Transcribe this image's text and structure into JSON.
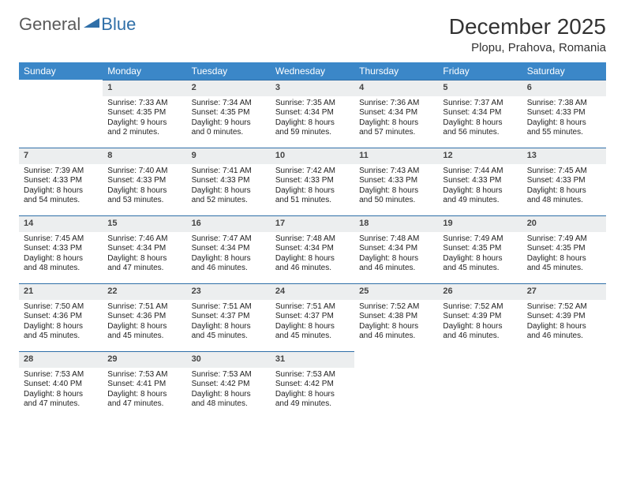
{
  "brand": {
    "text_gray": "General",
    "text_blue": "Blue",
    "mark_color": "#2f6fa8"
  },
  "header": {
    "title": "December 2025",
    "location": "Plopu, Prahova, Romania"
  },
  "columns": [
    "Sunday",
    "Monday",
    "Tuesday",
    "Wednesday",
    "Thursday",
    "Friday",
    "Saturday"
  ],
  "colors": {
    "header_bg": "#3b87c8",
    "header_text": "#ffffff",
    "daynum_bg": "#eceeef",
    "rule": "#2f6fa8"
  },
  "weeks": [
    [
      {
        "n": "",
        "sr": "",
        "ss": "",
        "dl": ""
      },
      {
        "n": "1",
        "sr": "Sunrise: 7:33 AM",
        "ss": "Sunset: 4:35 PM",
        "dl": "Daylight: 9 hours and 2 minutes."
      },
      {
        "n": "2",
        "sr": "Sunrise: 7:34 AM",
        "ss": "Sunset: 4:35 PM",
        "dl": "Daylight: 9 hours and 0 minutes."
      },
      {
        "n": "3",
        "sr": "Sunrise: 7:35 AM",
        "ss": "Sunset: 4:34 PM",
        "dl": "Daylight: 8 hours and 59 minutes."
      },
      {
        "n": "4",
        "sr": "Sunrise: 7:36 AM",
        "ss": "Sunset: 4:34 PM",
        "dl": "Daylight: 8 hours and 57 minutes."
      },
      {
        "n": "5",
        "sr": "Sunrise: 7:37 AM",
        "ss": "Sunset: 4:34 PM",
        "dl": "Daylight: 8 hours and 56 minutes."
      },
      {
        "n": "6",
        "sr": "Sunrise: 7:38 AM",
        "ss": "Sunset: 4:33 PM",
        "dl": "Daylight: 8 hours and 55 minutes."
      }
    ],
    [
      {
        "n": "7",
        "sr": "Sunrise: 7:39 AM",
        "ss": "Sunset: 4:33 PM",
        "dl": "Daylight: 8 hours and 54 minutes."
      },
      {
        "n": "8",
        "sr": "Sunrise: 7:40 AM",
        "ss": "Sunset: 4:33 PM",
        "dl": "Daylight: 8 hours and 53 minutes."
      },
      {
        "n": "9",
        "sr": "Sunrise: 7:41 AM",
        "ss": "Sunset: 4:33 PM",
        "dl": "Daylight: 8 hours and 52 minutes."
      },
      {
        "n": "10",
        "sr": "Sunrise: 7:42 AM",
        "ss": "Sunset: 4:33 PM",
        "dl": "Daylight: 8 hours and 51 minutes."
      },
      {
        "n": "11",
        "sr": "Sunrise: 7:43 AM",
        "ss": "Sunset: 4:33 PM",
        "dl": "Daylight: 8 hours and 50 minutes."
      },
      {
        "n": "12",
        "sr": "Sunrise: 7:44 AM",
        "ss": "Sunset: 4:33 PM",
        "dl": "Daylight: 8 hours and 49 minutes."
      },
      {
        "n": "13",
        "sr": "Sunrise: 7:45 AM",
        "ss": "Sunset: 4:33 PM",
        "dl": "Daylight: 8 hours and 48 minutes."
      }
    ],
    [
      {
        "n": "14",
        "sr": "Sunrise: 7:45 AM",
        "ss": "Sunset: 4:33 PM",
        "dl": "Daylight: 8 hours and 48 minutes."
      },
      {
        "n": "15",
        "sr": "Sunrise: 7:46 AM",
        "ss": "Sunset: 4:34 PM",
        "dl": "Daylight: 8 hours and 47 minutes."
      },
      {
        "n": "16",
        "sr": "Sunrise: 7:47 AM",
        "ss": "Sunset: 4:34 PM",
        "dl": "Daylight: 8 hours and 46 minutes."
      },
      {
        "n": "17",
        "sr": "Sunrise: 7:48 AM",
        "ss": "Sunset: 4:34 PM",
        "dl": "Daylight: 8 hours and 46 minutes."
      },
      {
        "n": "18",
        "sr": "Sunrise: 7:48 AM",
        "ss": "Sunset: 4:34 PM",
        "dl": "Daylight: 8 hours and 46 minutes."
      },
      {
        "n": "19",
        "sr": "Sunrise: 7:49 AM",
        "ss": "Sunset: 4:35 PM",
        "dl": "Daylight: 8 hours and 45 minutes."
      },
      {
        "n": "20",
        "sr": "Sunrise: 7:49 AM",
        "ss": "Sunset: 4:35 PM",
        "dl": "Daylight: 8 hours and 45 minutes."
      }
    ],
    [
      {
        "n": "21",
        "sr": "Sunrise: 7:50 AM",
        "ss": "Sunset: 4:36 PM",
        "dl": "Daylight: 8 hours and 45 minutes."
      },
      {
        "n": "22",
        "sr": "Sunrise: 7:51 AM",
        "ss": "Sunset: 4:36 PM",
        "dl": "Daylight: 8 hours and 45 minutes."
      },
      {
        "n": "23",
        "sr": "Sunrise: 7:51 AM",
        "ss": "Sunset: 4:37 PM",
        "dl": "Daylight: 8 hours and 45 minutes."
      },
      {
        "n": "24",
        "sr": "Sunrise: 7:51 AM",
        "ss": "Sunset: 4:37 PM",
        "dl": "Daylight: 8 hours and 45 minutes."
      },
      {
        "n": "25",
        "sr": "Sunrise: 7:52 AM",
        "ss": "Sunset: 4:38 PM",
        "dl": "Daylight: 8 hours and 46 minutes."
      },
      {
        "n": "26",
        "sr": "Sunrise: 7:52 AM",
        "ss": "Sunset: 4:39 PM",
        "dl": "Daylight: 8 hours and 46 minutes."
      },
      {
        "n": "27",
        "sr": "Sunrise: 7:52 AM",
        "ss": "Sunset: 4:39 PM",
        "dl": "Daylight: 8 hours and 46 minutes."
      }
    ],
    [
      {
        "n": "28",
        "sr": "Sunrise: 7:53 AM",
        "ss": "Sunset: 4:40 PM",
        "dl": "Daylight: 8 hours and 47 minutes."
      },
      {
        "n": "29",
        "sr": "Sunrise: 7:53 AM",
        "ss": "Sunset: 4:41 PM",
        "dl": "Daylight: 8 hours and 47 minutes."
      },
      {
        "n": "30",
        "sr": "Sunrise: 7:53 AM",
        "ss": "Sunset: 4:42 PM",
        "dl": "Daylight: 8 hours and 48 minutes."
      },
      {
        "n": "31",
        "sr": "Sunrise: 7:53 AM",
        "ss": "Sunset: 4:42 PM",
        "dl": "Daylight: 8 hours and 49 minutes."
      },
      {
        "n": "",
        "sr": "",
        "ss": "",
        "dl": ""
      },
      {
        "n": "",
        "sr": "",
        "ss": "",
        "dl": ""
      },
      {
        "n": "",
        "sr": "",
        "ss": "",
        "dl": ""
      }
    ]
  ]
}
